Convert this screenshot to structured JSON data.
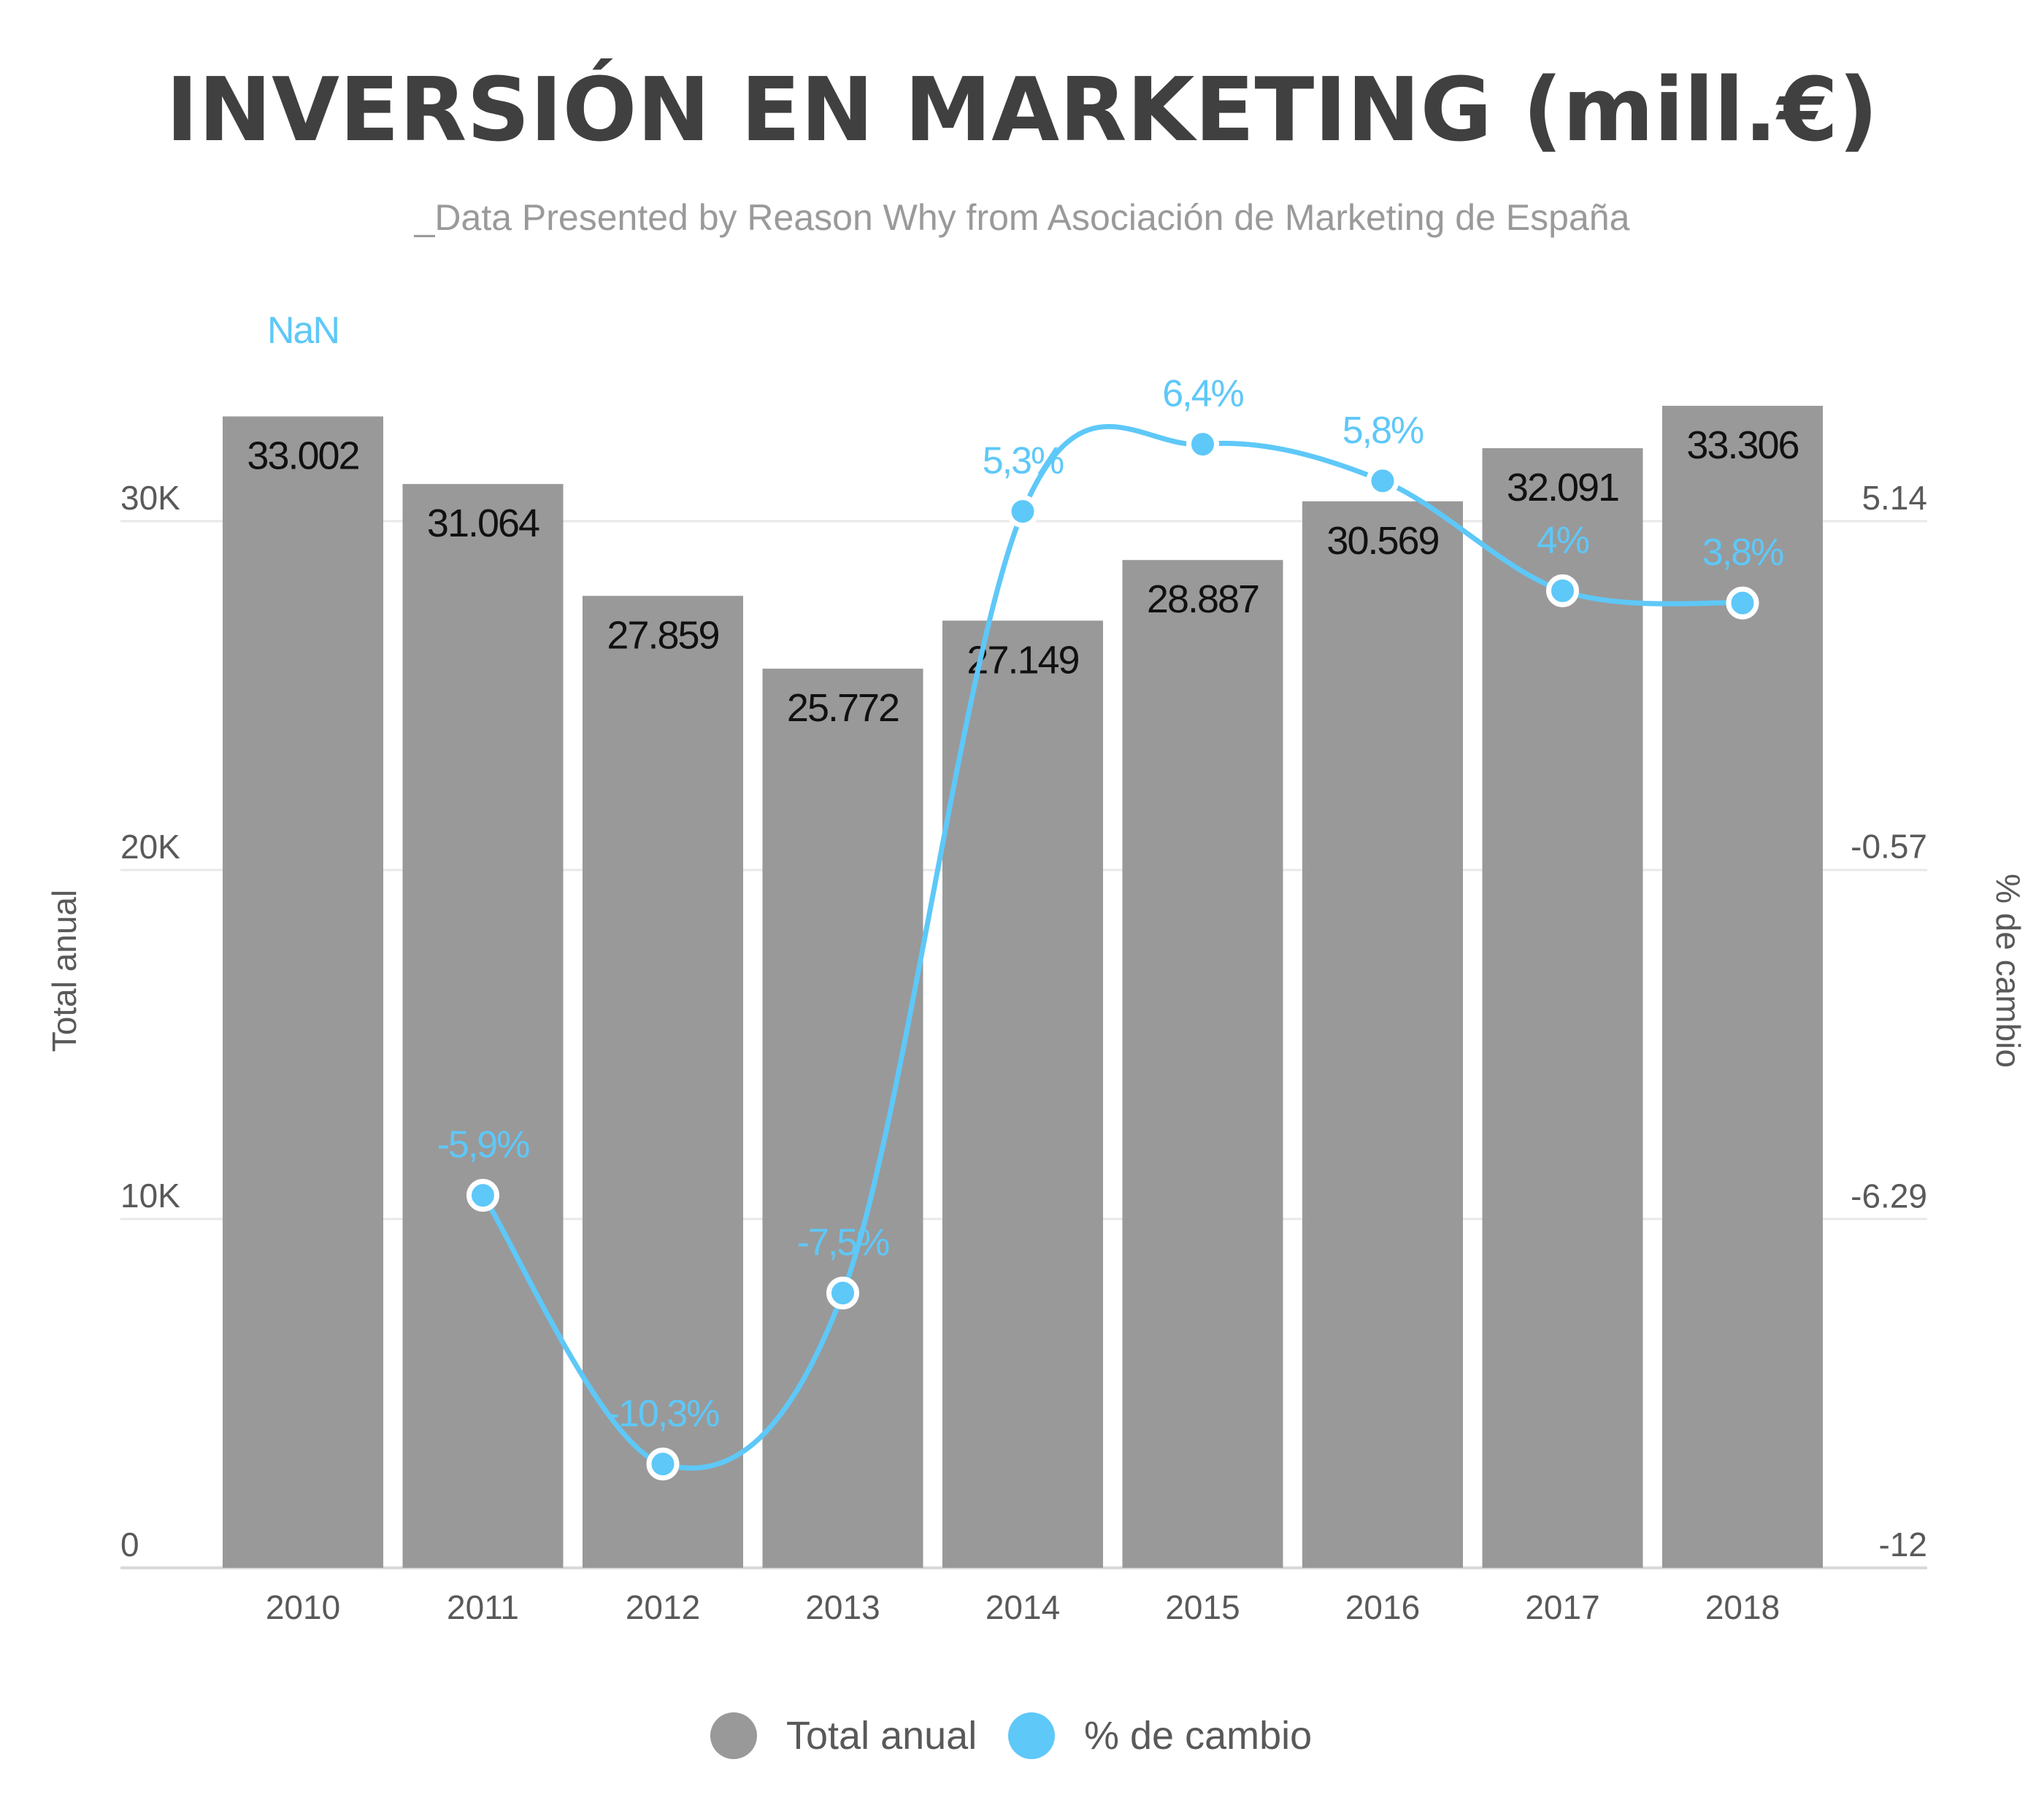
{
  "chart_data": {
    "type": "bar",
    "title": "INVERSIÓN EN MARKETING (mill.€)",
    "subtitle": "_Data Presented by Reason Why from Asociación de Marketing de España",
    "categories": [
      "2010",
      "2011",
      "2012",
      "2013",
      "2014",
      "2015",
      "2016",
      "2017",
      "2018"
    ],
    "series": [
      {
        "name": "Total anual",
        "type": "bar",
        "axis": "left",
        "color": "#999999",
        "values": [
          33002,
          31064,
          27859,
          25772,
          27149,
          28887,
          30569,
          32091,
          33306
        ],
        "labels": [
          "33.002",
          "31.064",
          "27.859",
          "25.772",
          "27.149",
          "28.887",
          "30.569",
          "32.091",
          "33.306"
        ]
      },
      {
        "name": "% de cambio",
        "type": "line",
        "axis": "right",
        "color": "#5ec8f8",
        "values": [
          null,
          -5.9,
          -10.3,
          -7.5,
          5.3,
          6.4,
          5.8,
          4,
          3.8
        ],
        "labels": [
          "NaN",
          "-5,9%",
          "-10,3%",
          "-7,5%",
          "5,3%",
          "6,4%",
          "5,8%",
          "4%",
          "3,8%"
        ]
      }
    ],
    "y_left": {
      "label": "Total anual",
      "ylim": [
        0,
        30000
      ],
      "ticks": [
        0,
        10000,
        20000,
        30000
      ],
      "tick_labels": [
        "0",
        "10K",
        "20K",
        "30K"
      ]
    },
    "y_right": {
      "label": "% de cambio",
      "ylim": [
        -12,
        5.14
      ],
      "ticks": [
        -12,
        -6.29,
        -0.57,
        5.14
      ],
      "tick_labels": [
        "-12",
        "-6.29",
        "-0.57",
        "5.14"
      ]
    },
    "grid": true,
    "legend": {
      "position": "bottom-center",
      "items": [
        "Total anual",
        "% de cambio"
      ]
    }
  }
}
